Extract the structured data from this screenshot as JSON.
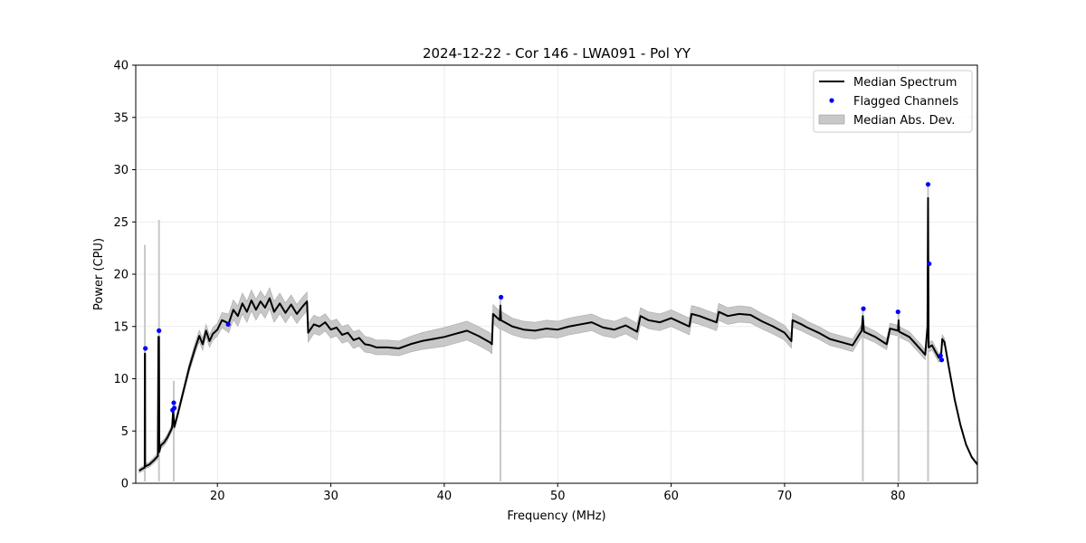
{
  "chart_data": {
    "type": "line",
    "title": "2024-12-22 - Cor 146 - LWA091 - Pol YY",
    "xlabel": "Frequency (MHz)",
    "ylabel": "Power (CPU)",
    "xlim": [
      12.8,
      87.0
    ],
    "ylim": [
      0,
      40
    ],
    "xticks": [
      20,
      30,
      40,
      50,
      60,
      70,
      80
    ],
    "yticks": [
      0,
      5,
      10,
      15,
      20,
      25,
      30,
      35,
      40
    ],
    "grid": true,
    "legend_position": "top-right",
    "legend": [
      {
        "label": "Median Spectrum",
        "kind": "line"
      },
      {
        "label": "Flagged Channels",
        "kind": "marker"
      },
      {
        "label": "Median Abs. Dev.",
        "kind": "patch"
      }
    ],
    "series": [
      {
        "name": "Median Spectrum",
        "color": "#000000",
        "points": [
          [
            13.1,
            1.2
          ],
          [
            13.4,
            1.4
          ],
          [
            13.59,
            1.5
          ],
          [
            13.6,
            12.4
          ],
          [
            13.62,
            12.4
          ],
          [
            13.63,
            1.6
          ],
          [
            14.0,
            1.8
          ],
          [
            14.4,
            2.2
          ],
          [
            14.75,
            2.6
          ],
          [
            14.8,
            14.0
          ],
          [
            14.85,
            14.0
          ],
          [
            14.88,
            3.0
          ],
          [
            15.0,
            3.6
          ],
          [
            15.3,
            3.9
          ],
          [
            15.6,
            4.4
          ],
          [
            16.0,
            5.3
          ],
          [
            16.1,
            7.0
          ],
          [
            16.2,
            5.4
          ],
          [
            16.5,
            6.6
          ],
          [
            17.0,
            8.8
          ],
          [
            17.5,
            11.0
          ],
          [
            18.0,
            12.8
          ],
          [
            18.4,
            14.1
          ],
          [
            18.7,
            13.3
          ],
          [
            19.0,
            14.6
          ],
          [
            19.3,
            13.6
          ],
          [
            19.6,
            14.3
          ],
          [
            20.0,
            14.7
          ],
          [
            20.4,
            15.6
          ],
          [
            21.0,
            15.3
          ],
          [
            21.4,
            16.6
          ],
          [
            21.8,
            16.0
          ],
          [
            22.2,
            17.2
          ],
          [
            22.6,
            16.4
          ],
          [
            23.0,
            17.5
          ],
          [
            23.4,
            16.6
          ],
          [
            23.8,
            17.4
          ],
          [
            24.2,
            16.8
          ],
          [
            24.6,
            17.7
          ],
          [
            25.0,
            16.4
          ],
          [
            25.5,
            17.2
          ],
          [
            26.0,
            16.3
          ],
          [
            26.5,
            17.1
          ],
          [
            27.0,
            16.2
          ],
          [
            27.5,
            16.9
          ],
          [
            27.9,
            17.4
          ],
          [
            28.0,
            14.4
          ],
          [
            28.5,
            15.2
          ],
          [
            29.0,
            15.0
          ],
          [
            29.5,
            15.4
          ],
          [
            30.0,
            14.7
          ],
          [
            30.5,
            14.9
          ],
          [
            31.0,
            14.2
          ],
          [
            31.5,
            14.4
          ],
          [
            32.0,
            13.7
          ],
          [
            32.5,
            13.9
          ],
          [
            33.0,
            13.3
          ],
          [
            33.5,
            13.2
          ],
          [
            34.0,
            13.0
          ],
          [
            35.0,
            13.0
          ],
          [
            36.0,
            12.9
          ],
          [
            37.0,
            13.3
          ],
          [
            38.0,
            13.6
          ],
          [
            39.0,
            13.8
          ],
          [
            40.0,
            14.0
          ],
          [
            41.0,
            14.3
          ],
          [
            42.0,
            14.6
          ],
          [
            43.0,
            14.1
          ],
          [
            44.0,
            13.5
          ],
          [
            44.2,
            13.3
          ],
          [
            44.3,
            16.2
          ],
          [
            44.6,
            15.9
          ],
          [
            44.9,
            15.6
          ],
          [
            44.95,
            17.0
          ],
          [
            45.0,
            15.6
          ],
          [
            46.0,
            15.0
          ],
          [
            47.0,
            14.7
          ],
          [
            48.0,
            14.6
          ],
          [
            49.0,
            14.8
          ],
          [
            50.0,
            14.7
          ],
          [
            51.0,
            15.0
          ],
          [
            52.0,
            15.2
          ],
          [
            53.0,
            15.4
          ],
          [
            54.0,
            14.9
          ],
          [
            55.0,
            14.7
          ],
          [
            56.0,
            15.1
          ],
          [
            57.0,
            14.5
          ],
          [
            57.3,
            16.0
          ],
          [
            58.0,
            15.6
          ],
          [
            59.0,
            15.4
          ],
          [
            60.0,
            15.8
          ],
          [
            61.0,
            15.3
          ],
          [
            61.6,
            15.0
          ],
          [
            61.8,
            16.2
          ],
          [
            62.5,
            16.0
          ],
          [
            63.0,
            15.8
          ],
          [
            64.0,
            15.4
          ],
          [
            64.2,
            16.4
          ],
          [
            65.0,
            16.0
          ],
          [
            66.0,
            16.2
          ],
          [
            67.0,
            16.1
          ],
          [
            68.0,
            15.5
          ],
          [
            69.0,
            15.0
          ],
          [
            70.0,
            14.4
          ],
          [
            70.6,
            13.6
          ],
          [
            70.7,
            15.6
          ],
          [
            71.5,
            15.2
          ],
          [
            72.0,
            14.9
          ],
          [
            73.0,
            14.4
          ],
          [
            74.0,
            13.8
          ],
          [
            75.0,
            13.5
          ],
          [
            76.0,
            13.2
          ],
          [
            76.8,
            14.6
          ],
          [
            76.9,
            16.0
          ],
          [
            77.0,
            14.5
          ],
          [
            78.0,
            14.0
          ],
          [
            79.0,
            13.3
          ],
          [
            79.3,
            14.8
          ],
          [
            80.0,
            14.6
          ],
          [
            80.05,
            15.6
          ],
          [
            80.1,
            14.5
          ],
          [
            81.0,
            14.0
          ],
          [
            81.5,
            13.4
          ],
          [
            82.0,
            12.8
          ],
          [
            82.4,
            12.3
          ],
          [
            82.6,
            15.0
          ],
          [
            82.65,
            27.3
          ],
          [
            82.7,
            13.0
          ],
          [
            83.0,
            13.2
          ],
          [
            83.3,
            12.6
          ],
          [
            83.6,
            12.0
          ],
          [
            83.8,
            12.2
          ],
          [
            83.9,
            13.8
          ],
          [
            84.1,
            13.5
          ],
          [
            84.5,
            11.0
          ],
          [
            85.0,
            8.0
          ],
          [
            85.5,
            5.6
          ],
          [
            86.0,
            3.7
          ],
          [
            86.5,
            2.5
          ],
          [
            87.0,
            1.8
          ]
        ]
      },
      {
        "name": "Median Abs. Dev.",
        "color": "#c8c8c8",
        "mad": [
          [
            13.1,
            0.2
          ],
          [
            15.0,
            0.3
          ],
          [
            17.0,
            0.35
          ],
          [
            18.0,
            0.5
          ],
          [
            19.0,
            0.6
          ],
          [
            20.0,
            0.6
          ],
          [
            21.0,
            0.9
          ],
          [
            22.0,
            1.0
          ],
          [
            23.0,
            1.0
          ],
          [
            25.0,
            1.0
          ],
          [
            27.0,
            0.9
          ],
          [
            27.9,
            0.9
          ],
          [
            28.0,
            0.9
          ],
          [
            30.0,
            0.8
          ],
          [
            32.0,
            0.8
          ],
          [
            34.0,
            0.7
          ],
          [
            36.0,
            0.7
          ],
          [
            38.0,
            0.8
          ],
          [
            40.0,
            0.9
          ],
          [
            42.0,
            0.9
          ],
          [
            44.0,
            0.9
          ],
          [
            44.3,
            0.9
          ],
          [
            46.0,
            0.8
          ],
          [
            50.0,
            0.8
          ],
          [
            55.0,
            0.8
          ],
          [
            60.0,
            0.8
          ],
          [
            65.0,
            0.8
          ],
          [
            70.0,
            0.7
          ],
          [
            72.0,
            0.6
          ],
          [
            76.0,
            0.6
          ],
          [
            80.0,
            0.5
          ],
          [
            82.0,
            0.5
          ],
          [
            84.0,
            0.4
          ],
          [
            85.0,
            0.2
          ],
          [
            87.0,
            0.1
          ]
        ],
        "spikes": [
          {
            "x": 13.6,
            "y": 22.8
          },
          {
            "x": 14.85,
            "y": 25.2
          },
          {
            "x": 16.15,
            "y": 9.8
          },
          {
            "x": 44.95,
            "y": 17.6
          },
          {
            "x": 76.9,
            "y": 16.5
          },
          {
            "x": 80.05,
            "y": 16.2
          },
          {
            "x": 82.65,
            "y": 28.8
          }
        ]
      },
      {
        "name": "Flagged Channels",
        "color": "#0000ff",
        "points": [
          [
            13.65,
            12.9
          ],
          [
            14.85,
            14.6
          ],
          [
            16.05,
            7.0
          ],
          [
            16.15,
            7.7
          ],
          [
            16.2,
            7.2
          ],
          [
            20.95,
            15.2
          ],
          [
            45.0,
            17.8
          ],
          [
            76.95,
            16.7
          ],
          [
            80.0,
            16.4
          ],
          [
            82.65,
            28.6
          ],
          [
            82.75,
            21.0
          ],
          [
            83.75,
            12.2
          ],
          [
            83.85,
            11.8
          ]
        ]
      }
    ]
  }
}
